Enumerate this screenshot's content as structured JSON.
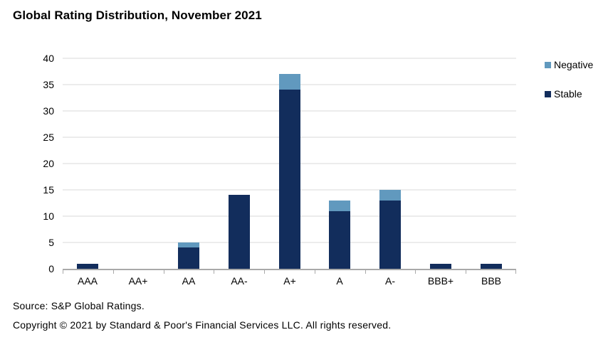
{
  "title": "Global Rating Distribution, November 2021",
  "chart_data": {
    "type": "bar",
    "stacked": true,
    "title": "Global Rating Distribution, November 2021",
    "categories": [
      "AAA",
      "AA+",
      "AA",
      "AA-",
      "A+",
      "A",
      "A-",
      "BBB+",
      "BBB"
    ],
    "series": [
      {
        "name": "Stable",
        "color": "#122d5c",
        "values": [
          1,
          0,
          4,
          14,
          34,
          11,
          13,
          1,
          1
        ]
      },
      {
        "name": "Negative",
        "color": "#6199be",
        "values": [
          0,
          0,
          1,
          0,
          3,
          2,
          2,
          0,
          0
        ]
      }
    ],
    "totals": [
      1,
      0,
      5,
      14,
      37,
      13,
      15,
      1,
      1
    ],
    "xlabel": "",
    "ylabel": "",
    "ylim": [
      0,
      40
    ],
    "ytick_step": 5,
    "yticks": [
      0,
      5,
      10,
      15,
      20,
      25,
      30,
      35,
      40
    ],
    "grid": true,
    "legend_position": "right"
  },
  "legend": {
    "items": [
      {
        "label": "Negative",
        "color": "#6199be"
      },
      {
        "label": "Stable",
        "color": "#122d5c"
      }
    ]
  },
  "footer": {
    "source": "Source: S&P Global Ratings.",
    "copyright": "Copyright © 2021 by Standard & Poor's Financial Services LLC. All rights reserved."
  },
  "colors": {
    "gridline": "#ececec",
    "axis": "#a9a9a9",
    "stable": "#122d5c",
    "negative": "#6199be"
  }
}
